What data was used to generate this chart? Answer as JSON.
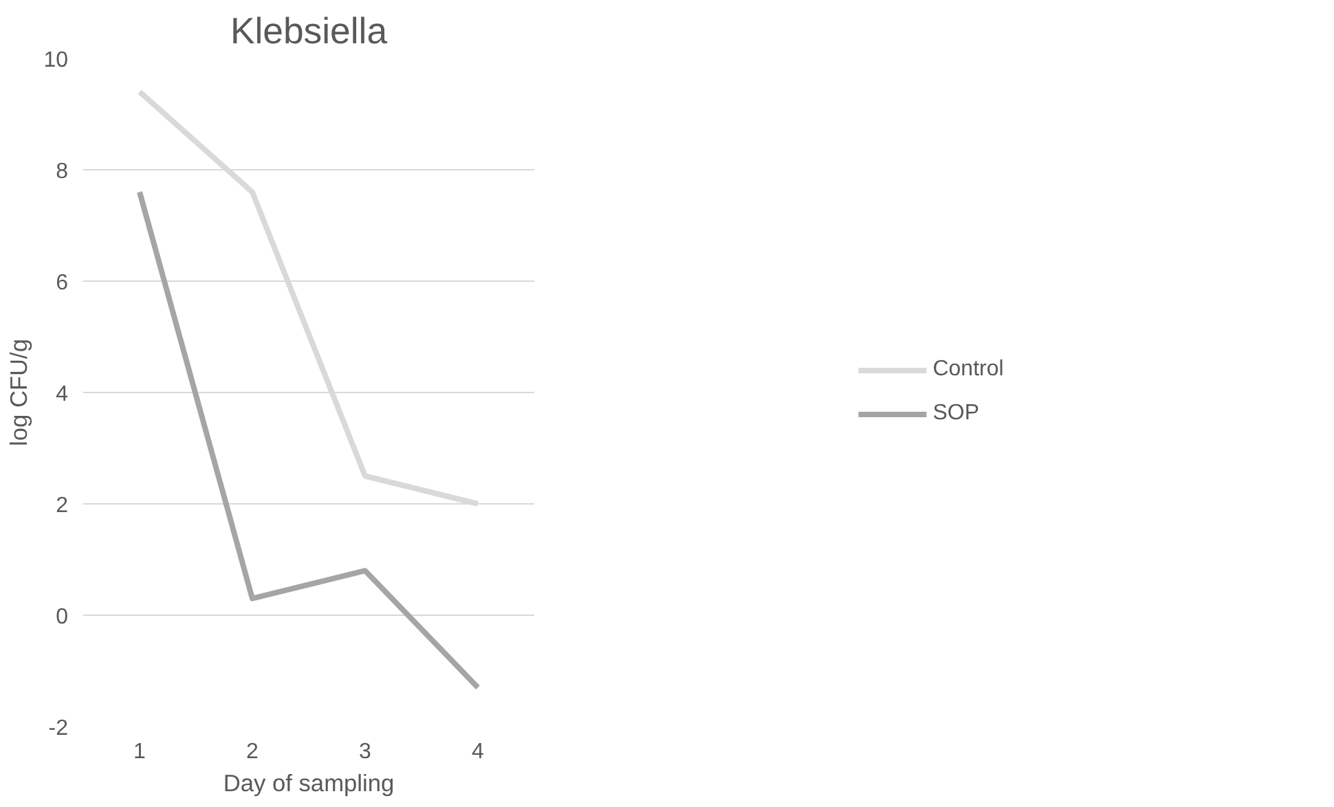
{
  "chart_data": {
    "type": "line",
    "title": "Klebsiella",
    "xlabel": "Day of sampling",
    "ylabel": "log CFU/g",
    "categories": [
      "1",
      "2",
      "3",
      "4"
    ],
    "series": [
      {
        "name": "Control",
        "color": "#d9d9d9",
        "values": [
          9.4,
          7.6,
          2.5,
          2.0
        ]
      },
      {
        "name": "SOP",
        "color": "#a5a5a5",
        "values": [
          7.6,
          0.3,
          0.8,
          -1.3
        ]
      }
    ],
    "ylim": [
      -2,
      10
    ],
    "yticks": [
      -2,
      0,
      2,
      4,
      6,
      8,
      10
    ],
    "grid": "y",
    "legend": "right",
    "marker": "none",
    "line_style": "solid"
  }
}
